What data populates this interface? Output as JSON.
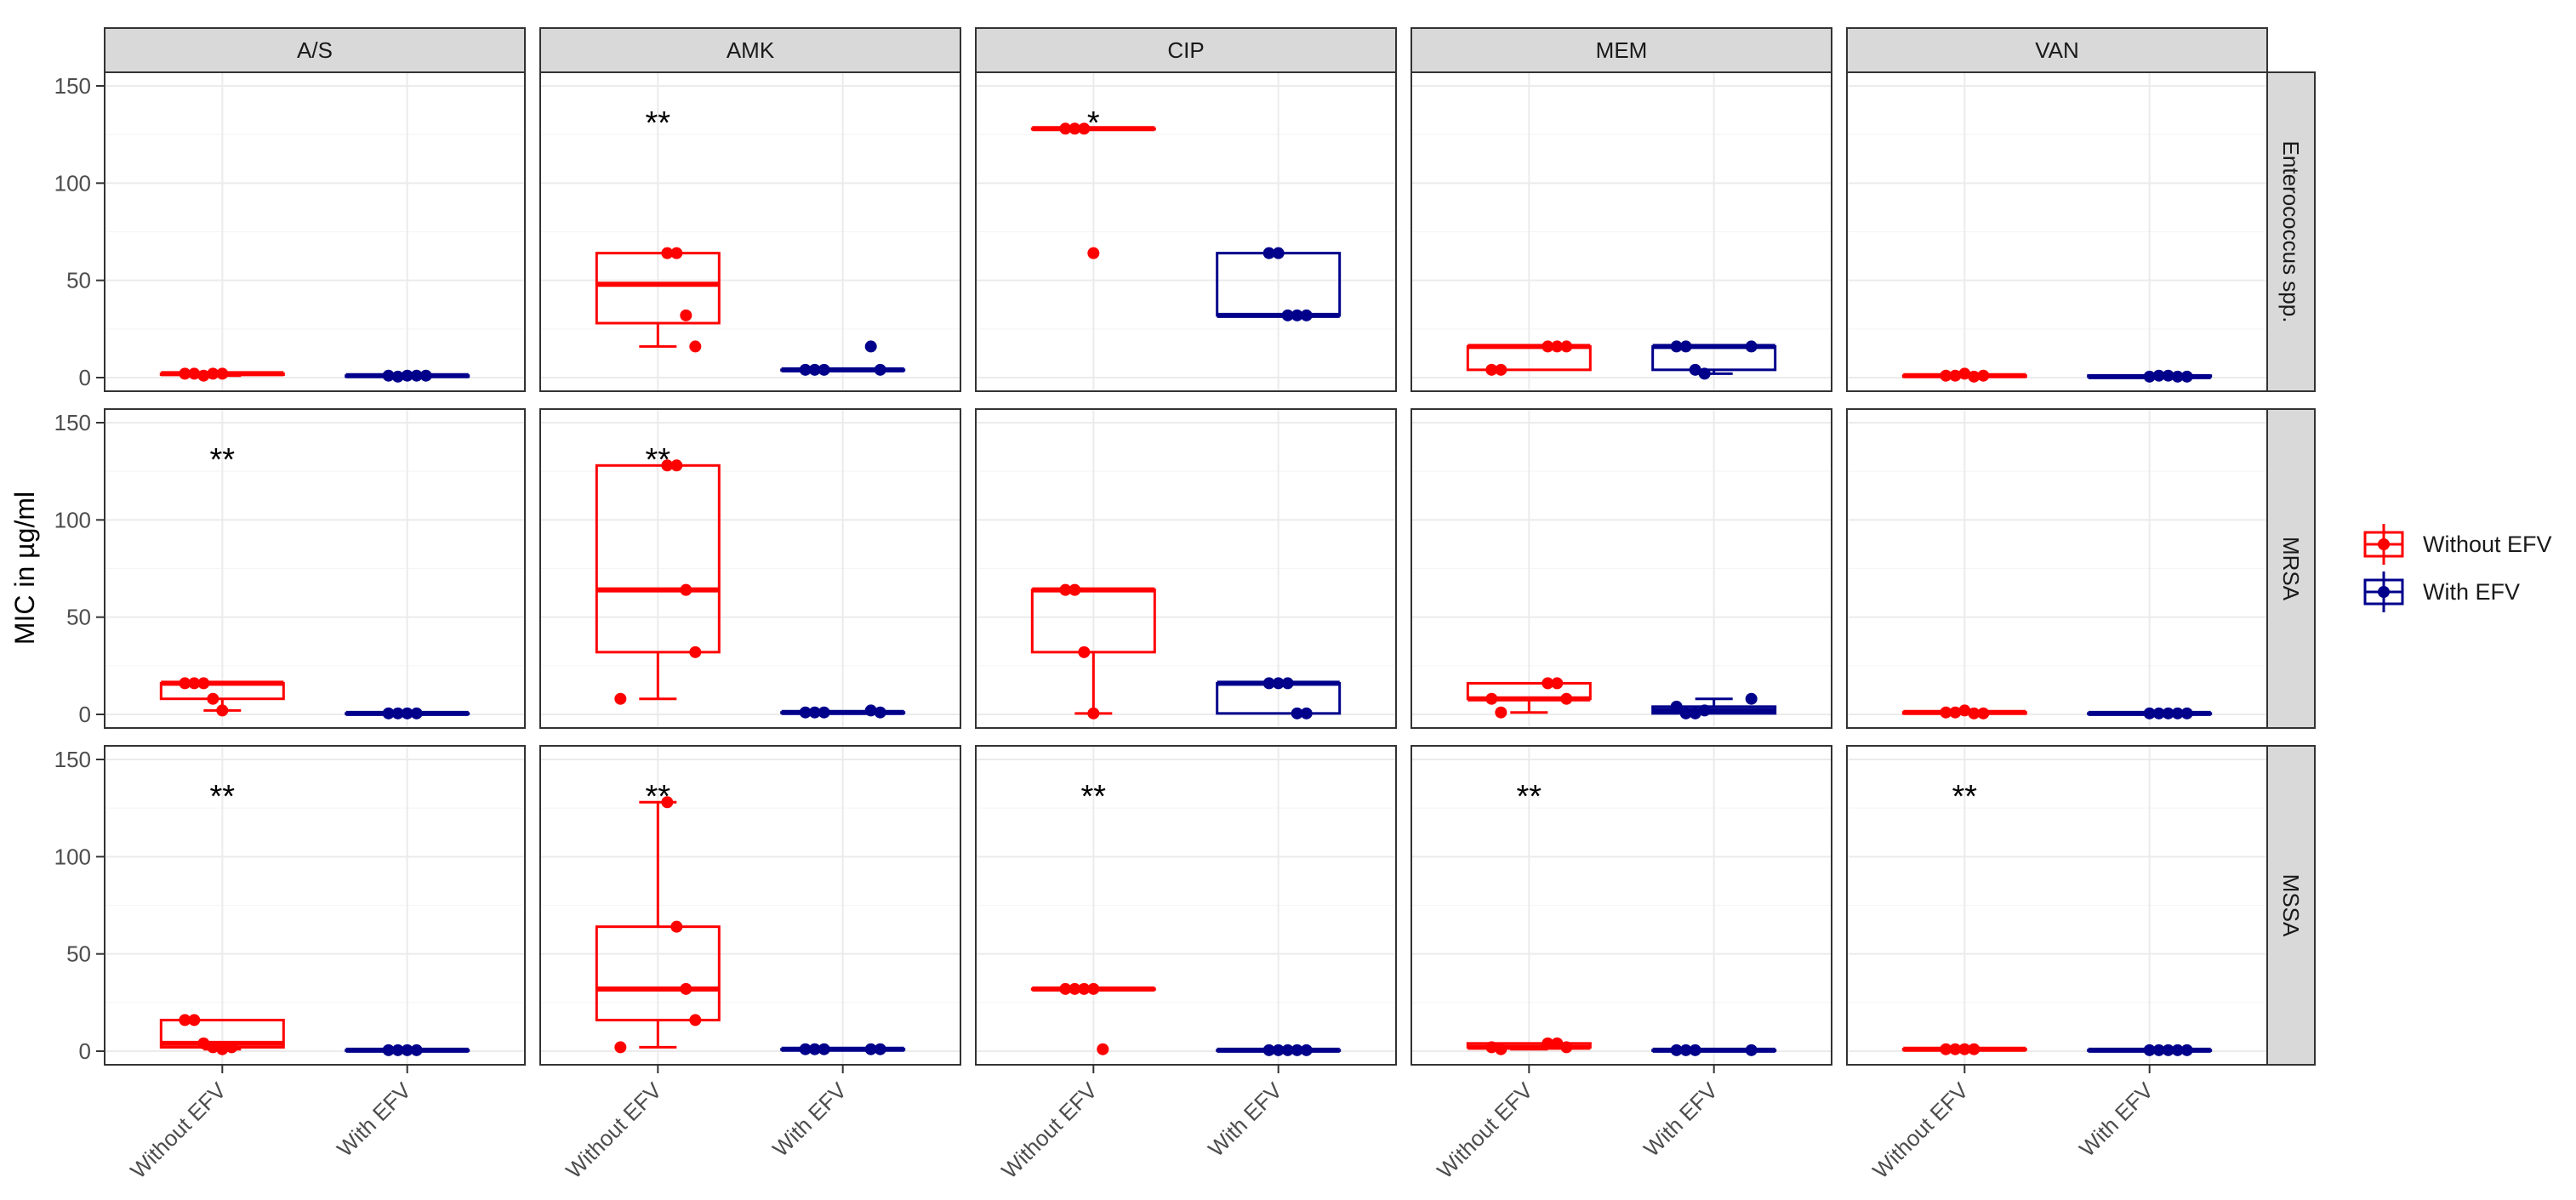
{
  "chart_data": {
    "type": "box",
    "ylabel": "MIC in µg/ml",
    "ylim": [
      -7,
      157
    ],
    "y_ticks": [
      0,
      50,
      100,
      150
    ],
    "columns": [
      "A/S",
      "AMK",
      "CIP",
      "MEM",
      "VAN"
    ],
    "rows": [
      "Enterococcus spp.",
      "MRSA",
      "MSSA"
    ],
    "x_categories": [
      "Without EFV",
      "With EFV"
    ],
    "legend": {
      "position": "right",
      "entries": [
        {
          "label": "Without EFV",
          "color": "#ff0000"
        },
        {
          "label": "With EFV",
          "color": "#00008b"
        }
      ]
    },
    "panels": [
      {
        "row": "Enterococcus spp.",
        "col": "A/S",
        "significance": "",
        "without": {
          "q1": 1.5,
          "median": 2,
          "q3": 2,
          "wlo": 1,
          "whi": 2,
          "points": [
            2,
            2,
            1,
            2,
            2
          ]
        },
        "with": {
          "q1": 0.5,
          "median": 1,
          "q3": 1,
          "wlo": 0.5,
          "whi": 1,
          "points": [
            1,
            0.5,
            1,
            1,
            1
          ]
        }
      },
      {
        "row": "Enterococcus spp.",
        "col": "AMK",
        "significance": "**",
        "without": {
          "q1": 28,
          "median": 48,
          "q3": 64,
          "wlo": 16,
          "whi": 64,
          "points": [
            64,
            64,
            32,
            16
          ]
        },
        "with": {
          "q1": 4,
          "median": 4,
          "q3": 4,
          "wlo": 4,
          "whi": 4,
          "points": [
            16,
            4,
            4,
            4,
            4
          ]
        }
      },
      {
        "row": "Enterococcus spp.",
        "col": "CIP",
        "significance": "*",
        "without": {
          "q1": 128,
          "median": 128,
          "q3": 128,
          "wlo": 128,
          "whi": 128,
          "points": [
            128,
            128,
            128,
            64
          ]
        },
        "with": {
          "q1": 32,
          "median": 32,
          "q3": 64,
          "wlo": 32,
          "whi": 64,
          "points": [
            64,
            64,
            32,
            32,
            32
          ]
        }
      },
      {
        "row": "Enterococcus spp.",
        "col": "MEM",
        "significance": "",
        "without": {
          "q1": 4,
          "median": 16,
          "q3": 16,
          "wlo": 4,
          "whi": 16,
          "points": [
            16,
            16,
            16,
            4,
            4
          ]
        },
        "with": {
          "q1": 4,
          "median": 16,
          "q3": 16,
          "wlo": 2,
          "whi": 16,
          "points": [
            16,
            16,
            16,
            4,
            2
          ]
        }
      },
      {
        "row": "Enterococcus spp.",
        "col": "VAN",
        "significance": "",
        "without": {
          "q1": 0.5,
          "median": 1,
          "q3": 1,
          "wlo": 0.5,
          "whi": 1,
          "points": [
            1,
            1,
            2,
            0.5,
            1
          ]
        },
        "with": {
          "q1": 0.5,
          "median": 0.5,
          "q3": 1,
          "wlo": 0.5,
          "whi": 1,
          "points": [
            0.5,
            1,
            1,
            0.5,
            0.5
          ]
        }
      },
      {
        "row": "MRSA",
        "col": "A/S",
        "significance": "**",
        "without": {
          "q1": 8,
          "median": 16,
          "q3": 16,
          "wlo": 2,
          "whi": 16,
          "points": [
            16,
            16,
            16,
            8,
            2
          ]
        },
        "with": {
          "q1": 0.5,
          "median": 0.5,
          "q3": 0.5,
          "wlo": 0.5,
          "whi": 0.5,
          "points": [
            0.5,
            0.5,
            0.5,
            0.5
          ]
        }
      },
      {
        "row": "MRSA",
        "col": "AMK",
        "significance": "**",
        "without": {
          "q1": 32,
          "median": 64,
          "q3": 128,
          "wlo": 8,
          "whi": 128,
          "points": [
            128,
            128,
            64,
            32,
            8
          ]
        },
        "with": {
          "q1": 1,
          "median": 1,
          "q3": 1,
          "wlo": 1,
          "whi": 1,
          "points": [
            2,
            1,
            1,
            1,
            1
          ]
        }
      },
      {
        "row": "MRSA",
        "col": "CIP",
        "significance": "",
        "without": {
          "q1": 32,
          "median": 64,
          "q3": 64,
          "wlo": 0.5,
          "whi": 64,
          "points": [
            64,
            64,
            32,
            0.5
          ]
        },
        "with": {
          "q1": 0.5,
          "median": 16,
          "q3": 16,
          "wlo": 0.5,
          "whi": 16,
          "points": [
            16,
            16,
            16,
            0.5,
            0.5
          ]
        }
      },
      {
        "row": "MRSA",
        "col": "MEM",
        "significance": "",
        "without": {
          "q1": 8,
          "median": 8,
          "q3": 16,
          "wlo": 1,
          "whi": 16,
          "points": [
            16,
            16,
            8,
            8,
            1
          ]
        },
        "with": {
          "q1": 0.5,
          "median": 2,
          "q3": 4,
          "wlo": 0.5,
          "whi": 8,
          "points": [
            8,
            4,
            0.5,
            0.5,
            2
          ]
        }
      },
      {
        "row": "MRSA",
        "col": "VAN",
        "significance": "",
        "without": {
          "q1": 0.5,
          "median": 1,
          "q3": 1,
          "wlo": 0.5,
          "whi": 1,
          "points": [
            1,
            1,
            2,
            0.5,
            0.5
          ]
        },
        "with": {
          "q1": 0.5,
          "median": 0.5,
          "q3": 0.5,
          "wlo": 0.5,
          "whi": 0.5,
          "points": [
            0.5,
            0.5,
            0.5,
            0.5,
            0.5
          ]
        }
      },
      {
        "row": "MSSA",
        "col": "A/S",
        "significance": "**",
        "without": {
          "q1": 2,
          "median": 4,
          "q3": 16,
          "wlo": 1,
          "whi": 16,
          "points": [
            16,
            16,
            4,
            2,
            1,
            2
          ]
        },
        "with": {
          "q1": 0.5,
          "median": 0.5,
          "q3": 0.5,
          "wlo": 0.5,
          "whi": 0.5,
          "points": [
            0.5,
            0.5,
            0.5,
            0.5
          ]
        }
      },
      {
        "row": "MSSA",
        "col": "AMK",
        "significance": "**",
        "without": {
          "q1": 16,
          "median": 32,
          "q3": 64,
          "wlo": 2,
          "whi": 128,
          "points": [
            128,
            64,
            32,
            16,
            2
          ]
        },
        "with": {
          "q1": 1,
          "median": 1,
          "q3": 1,
          "wlo": 1,
          "whi": 1,
          "points": [
            1,
            1,
            1,
            1,
            1
          ]
        }
      },
      {
        "row": "MSSA",
        "col": "CIP",
        "significance": "**",
        "without": {
          "q1": 32,
          "median": 32,
          "q3": 32,
          "wlo": 32,
          "whi": 32,
          "points": [
            32,
            32,
            32,
            32,
            1
          ]
        },
        "with": {
          "q1": 0.5,
          "median": 0.5,
          "q3": 0.5,
          "wlo": 0.5,
          "whi": 0.5,
          "points": [
            0.5,
            0.5,
            0.5,
            0.5,
            0.5
          ]
        }
      },
      {
        "row": "MSSA",
        "col": "MEM",
        "significance": "**",
        "without": {
          "q1": 2,
          "median": 2,
          "q3": 4,
          "wlo": 1,
          "whi": 4,
          "points": [
            4,
            4,
            2,
            2,
            1
          ]
        },
        "with": {
          "q1": 0.5,
          "median": 0.5,
          "q3": 0.5,
          "wlo": 0.5,
          "whi": 0.5,
          "points": [
            0.5,
            0.5,
            0.5,
            0.5
          ]
        }
      },
      {
        "row": "MSSA",
        "col": "VAN",
        "significance": "**",
        "without": {
          "q1": 1,
          "median": 1,
          "q3": 1,
          "wlo": 1,
          "whi": 1,
          "points": [
            1,
            1,
            1,
            1
          ]
        },
        "with": {
          "q1": 0.5,
          "median": 0.5,
          "q3": 0.5,
          "wlo": 0.5,
          "whi": 0.5,
          "points": [
            0.5,
            0.5,
            0.5,
            0.5,
            0.5
          ]
        }
      }
    ]
  }
}
